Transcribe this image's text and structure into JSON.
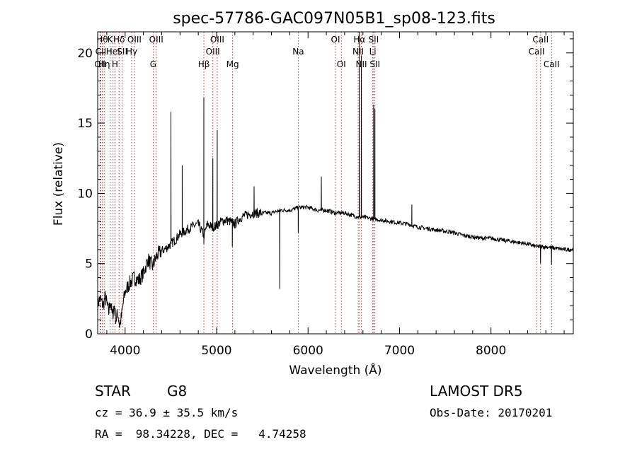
{
  "chart_data": {
    "type": "line",
    "title": "spec-57786-GAC097N05B1_sp08-123.fits",
    "xlabel": "Wavelength (Å)",
    "ylabel": "Flux (relative)",
    "xlim": [
      3700,
      8900
    ],
    "ylim": [
      0,
      21.5
    ],
    "xticks": [
      4000,
      5000,
      6000,
      7000,
      8000
    ],
    "yticks": [
      0,
      5,
      10,
      15,
      20
    ],
    "grid": false,
    "series": [
      {
        "x": [
          3700,
          3720,
          3740,
          3760,
          3780,
          3800,
          3820,
          3840,
          3860,
          3880,
          3900,
          3920,
          3940,
          3960,
          3980,
          4000,
          4050,
          4100,
          4150,
          4200,
          4250,
          4300,
          4350,
          4400,
          4450,
          4500,
          4550,
          4600,
          4650,
          4700,
          4750,
          4800,
          4861,
          4900,
          4950,
          5000,
          5050,
          5100,
          5150,
          5200,
          5250,
          5300,
          5400,
          5500,
          5600,
          5700,
          5800,
          5900,
          6000,
          6100,
          6200,
          6300,
          6400,
          6500,
          6562,
          6600,
          6700,
          6800,
          6900,
          7000,
          7100,
          7200,
          7300,
          7400,
          7500,
          7600,
          7700,
          7800,
          7900,
          8000,
          8100,
          8200,
          8300,
          8400,
          8500,
          8600,
          8700,
          8800,
          8900
        ],
        "y": [
          2.0,
          2.5,
          2.3,
          2.0,
          2.6,
          2.2,
          1.5,
          2.4,
          1.2,
          2.0,
          1.0,
          1.5,
          0.6,
          1.2,
          2.2,
          3.0,
          3.6,
          4.0,
          3.8,
          4.3,
          5.3,
          4.8,
          5.6,
          5.9,
          6.1,
          6.4,
          6.7,
          7.1,
          7.3,
          7.5,
          7.7,
          7.8,
          7.0,
          7.8,
          7.6,
          7.7,
          8.0,
          8.1,
          8.0,
          7.8,
          8.2,
          8.4,
          8.6,
          8.6,
          8.6,
          8.8,
          8.8,
          9.0,
          9.0,
          8.8,
          8.8,
          8.6,
          8.6,
          8.4,
          8.3,
          8.3,
          8.2,
          8.1,
          8.0,
          7.9,
          7.8,
          7.6,
          7.5,
          7.4,
          7.3,
          7.2,
          7.0,
          6.9,
          6.8,
          6.8,
          6.7,
          6.6,
          6.5,
          6.4,
          6.2,
          6.2,
          6.1,
          6.0,
          6.0
        ]
      }
    ],
    "spikes": [
      {
        "x": 4501,
        "y": 15.8
      },
      {
        "x": 4624,
        "y": 12.0
      },
      {
        "x": 4861,
        "y": 16.8
      },
      {
        "x": 4959,
        "y": 12.5
      },
      {
        "x": 5007,
        "y": 14.5
      },
      {
        "x": 5410,
        "y": 10.5
      },
      {
        "x": 6145,
        "y": 11.2
      },
      {
        "x": 6562,
        "y": 21.5
      },
      {
        "x": 6583,
        "y": 19.8
      },
      {
        "x": 6717,
        "y": 16.3
      },
      {
        "x": 6731,
        "y": 16.0
      },
      {
        "x": 7135,
        "y": 9.2
      }
    ],
    "dips": [
      {
        "x": 5690,
        "y": 3.2
      },
      {
        "x": 5893,
        "y": 7.2
      },
      {
        "x": 4861,
        "y": 6.4
      },
      {
        "x": 5172,
        "y": 6.2
      },
      {
        "x": 8542,
        "y": 5.0
      },
      {
        "x": 8662,
        "y": 4.9
      }
    ],
    "line_markers": [
      {
        "x": 3727,
        "label": "OII",
        "row": 2
      },
      {
        "x": 3734,
        "label": "CII",
        "row": 1
      },
      {
        "x": 3750,
        "label": "Hθ",
        "row": 0
      },
      {
        "x": 3771,
        "label": "Hη",
        "row": 2
      },
      {
        "x": 3835,
        "label": "K",
        "row": 0
      },
      {
        "x": 3868,
        "label": "HeI",
        "row": 1
      },
      {
        "x": 3889,
        "label": "H",
        "row": 2
      },
      {
        "x": 3934,
        "label": "Hδ",
        "row": 0
      },
      {
        "x": 3968,
        "label": "SII",
        "row": 1
      },
      {
        "x": 4102,
        "label": "OIII",
        "row": 0
      },
      {
        "x": 4072,
        "label": "Hγ",
        "row": 1
      },
      {
        "x": 4307,
        "label": "G",
        "row": 2
      },
      {
        "x": 4340,
        "label": "OIII",
        "row": 0
      },
      {
        "x": 4861,
        "label": "Hβ",
        "row": 2
      },
      {
        "x": 4959,
        "label": "OIII",
        "row": 1
      },
      {
        "x": 5007,
        "label": "OIII",
        "row": 0
      },
      {
        "x": 5175,
        "label": "Mg",
        "row": 2
      },
      {
        "x": 5893,
        "label": "Na",
        "row": 1
      },
      {
        "x": 6300,
        "label": "OI",
        "row": 0
      },
      {
        "x": 6364,
        "label": "OI",
        "row": 2
      },
      {
        "x": 6548,
        "label": "NII",
        "row": 1
      },
      {
        "x": 6562,
        "label": "Hα",
        "row": 0
      },
      {
        "x": 6583,
        "label": "NII",
        "row": 2
      },
      {
        "x": 6707,
        "label": "Li",
        "row": 1
      },
      {
        "x": 6717,
        "label": "SII",
        "row": 0
      },
      {
        "x": 6731,
        "label": "SII",
        "row": 2
      },
      {
        "x": 8498,
        "label": "CaII",
        "row": 1
      },
      {
        "x": 8542,
        "label": "CaII",
        "row": 0
      },
      {
        "x": 8662,
        "label": "CaII",
        "row": 2
      }
    ]
  },
  "footer": {
    "class_label": "STAR",
    "subclass": "G8",
    "survey": "LAMOST DR5",
    "cz": "cz = 36.9 ± 35.5 km/s",
    "obs_date": "Obs-Date: 20170201",
    "coords": "RA =  98.34228, DEC =   4.74258"
  },
  "colors": {
    "marker_line": "#c0392b",
    "spectrum": "#000000"
  }
}
